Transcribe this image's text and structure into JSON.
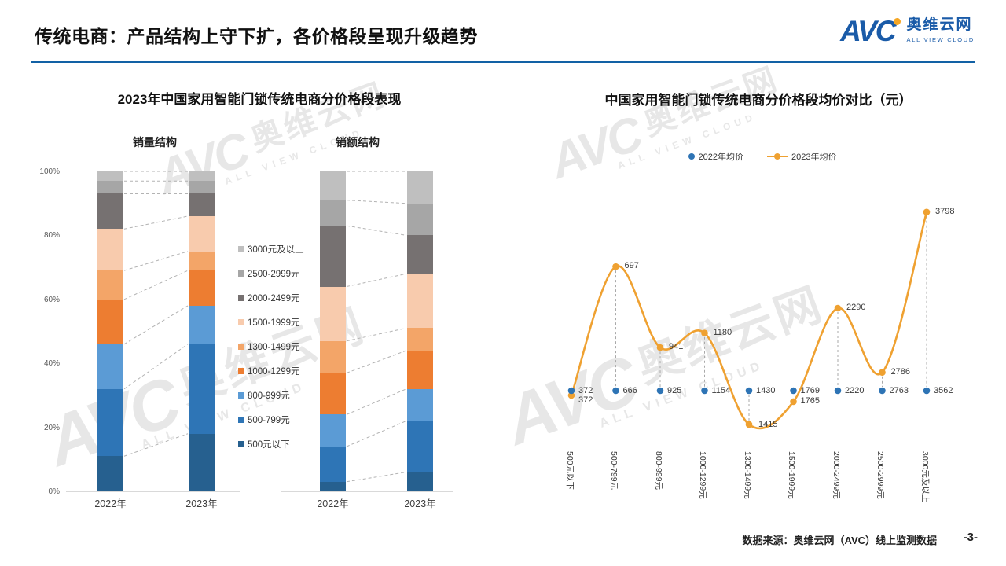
{
  "header": {
    "title": "传统电商：产品结构上守下扩，各价格段呈现升级趋势",
    "logo": {
      "abbr": "AVC",
      "name_cn": "奥维云网",
      "name_en": "ALL VIEW CLOUD"
    }
  },
  "watermark": {
    "abbr": "AVC",
    "name_cn": "奥维云网",
    "name_en": "ALL VIEW CLOUD"
  },
  "footer": {
    "source": "数据来源：奥维云网（AVC）线上监测数据",
    "page_number": "-3-"
  },
  "colors": {
    "title_rule": "#1261A5",
    "logo_blue": "#1A5BA8",
    "logo_orange": "#F5A623",
    "line_2023": "#EFA131",
    "dot_2022": "#2E74B5",
    "axis_line": "#D9D9D9",
    "connector_dash": "#B3B3B3",
    "label_text": "#3A3A3A"
  },
  "chart_data": [
    {
      "type": "bar",
      "stacked": true,
      "title": "2023年中国家用智能门锁传统电商分价格段表现",
      "unit": "%",
      "ylim": [
        0,
        100
      ],
      "yticks": [
        "0%",
        "20%",
        "40%",
        "60%",
        "80%",
        "100%"
      ],
      "price_segments": [
        "500元以下",
        "500-799元",
        "800-999元",
        "1000-1299元",
        "1300-1499元",
        "1500-1999元",
        "2000-2499元",
        "2500-2999元",
        "3000元及以上"
      ],
      "segment_colors": [
        "#26608F",
        "#2E75B6",
        "#5B9BD5",
        "#ED7D31",
        "#F3A568",
        "#F8CBAD",
        "#767171",
        "#A6A6A6",
        "#BFBFBF"
      ],
      "legend_top_to_bottom": [
        "3000元及以上",
        "2500-2999元",
        "2000-2499元",
        "1500-1999元",
        "1300-1499元",
        "1000-1299元",
        "800-999元",
        "500-799元",
        "500元以下"
      ],
      "sub_charts": [
        {
          "title": "销量结构",
          "categories": [
            "2022年",
            "2023年"
          ],
          "series": [
            {
              "name": "2022年",
              "values": [
                11,
                21,
                14,
                14,
                9,
                13,
                11,
                4,
                3
              ]
            },
            {
              "name": "2023年",
              "values": [
                18,
                28,
                12,
                11,
                6,
                11,
                7,
                4,
                3
              ]
            }
          ]
        },
        {
          "title": "销额结构",
          "categories": [
            "2022年",
            "2023年"
          ],
          "series": [
            {
              "name": "2022年",
              "values": [
                3,
                11,
                10,
                13,
                10,
                17,
                19,
                8,
                9
              ]
            },
            {
              "name": "2023年",
              "values": [
                6,
                16,
                10,
                12,
                7,
                17,
                12,
                10,
                10
              ]
            }
          ]
        }
      ]
    },
    {
      "type": "line",
      "title": "中国家用智能门锁传统电商分价格段均价对比（元）",
      "categories": [
        "500元以下",
        "500-799元",
        "800-999元",
        "1000-1299元",
        "1300-1499元",
        "1500-1999元",
        "2000-2499元",
        "2500-2999元",
        "3000元及以上"
      ],
      "series": [
        {
          "name": "2022年均价",
          "values": [
            372,
            666,
            925,
            1154,
            1430,
            1769,
            2220,
            2763,
            3562
          ]
        },
        {
          "name": "2023年均价",
          "values": [
            372,
            697,
            941,
            1180,
            1415,
            1765,
            2290,
            2786,
            3798
          ]
        }
      ],
      "legend_position": "top"
    }
  ]
}
